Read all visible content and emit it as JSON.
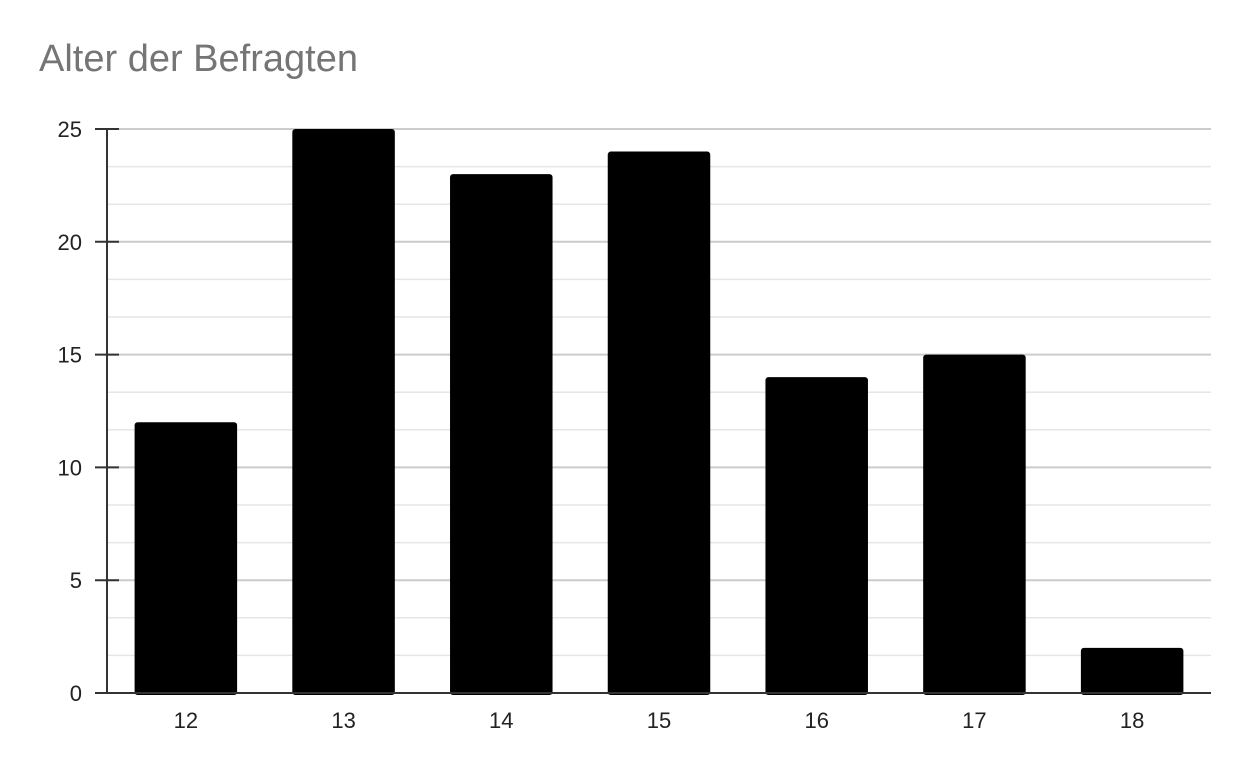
{
  "chart_data": {
    "type": "bar",
    "title": "Alter der Befragten",
    "xlabel": "",
    "ylabel": "",
    "categories": [
      "12",
      "13",
      "14",
      "15",
      "16",
      "17",
      "18"
    ],
    "values": [
      12,
      25,
      23,
      24,
      14,
      15,
      2
    ],
    "ylim": [
      0,
      25
    ],
    "yticks": [
      "0",
      "5",
      "10",
      "15",
      "20",
      "25"
    ],
    "grid": true,
    "legend": "none",
    "colors": {
      "bar": "#000000",
      "title": "#757575",
      "grid_major": "#cccccc",
      "grid_minor": "#e6e6e6",
      "axis": "#333333"
    }
  }
}
